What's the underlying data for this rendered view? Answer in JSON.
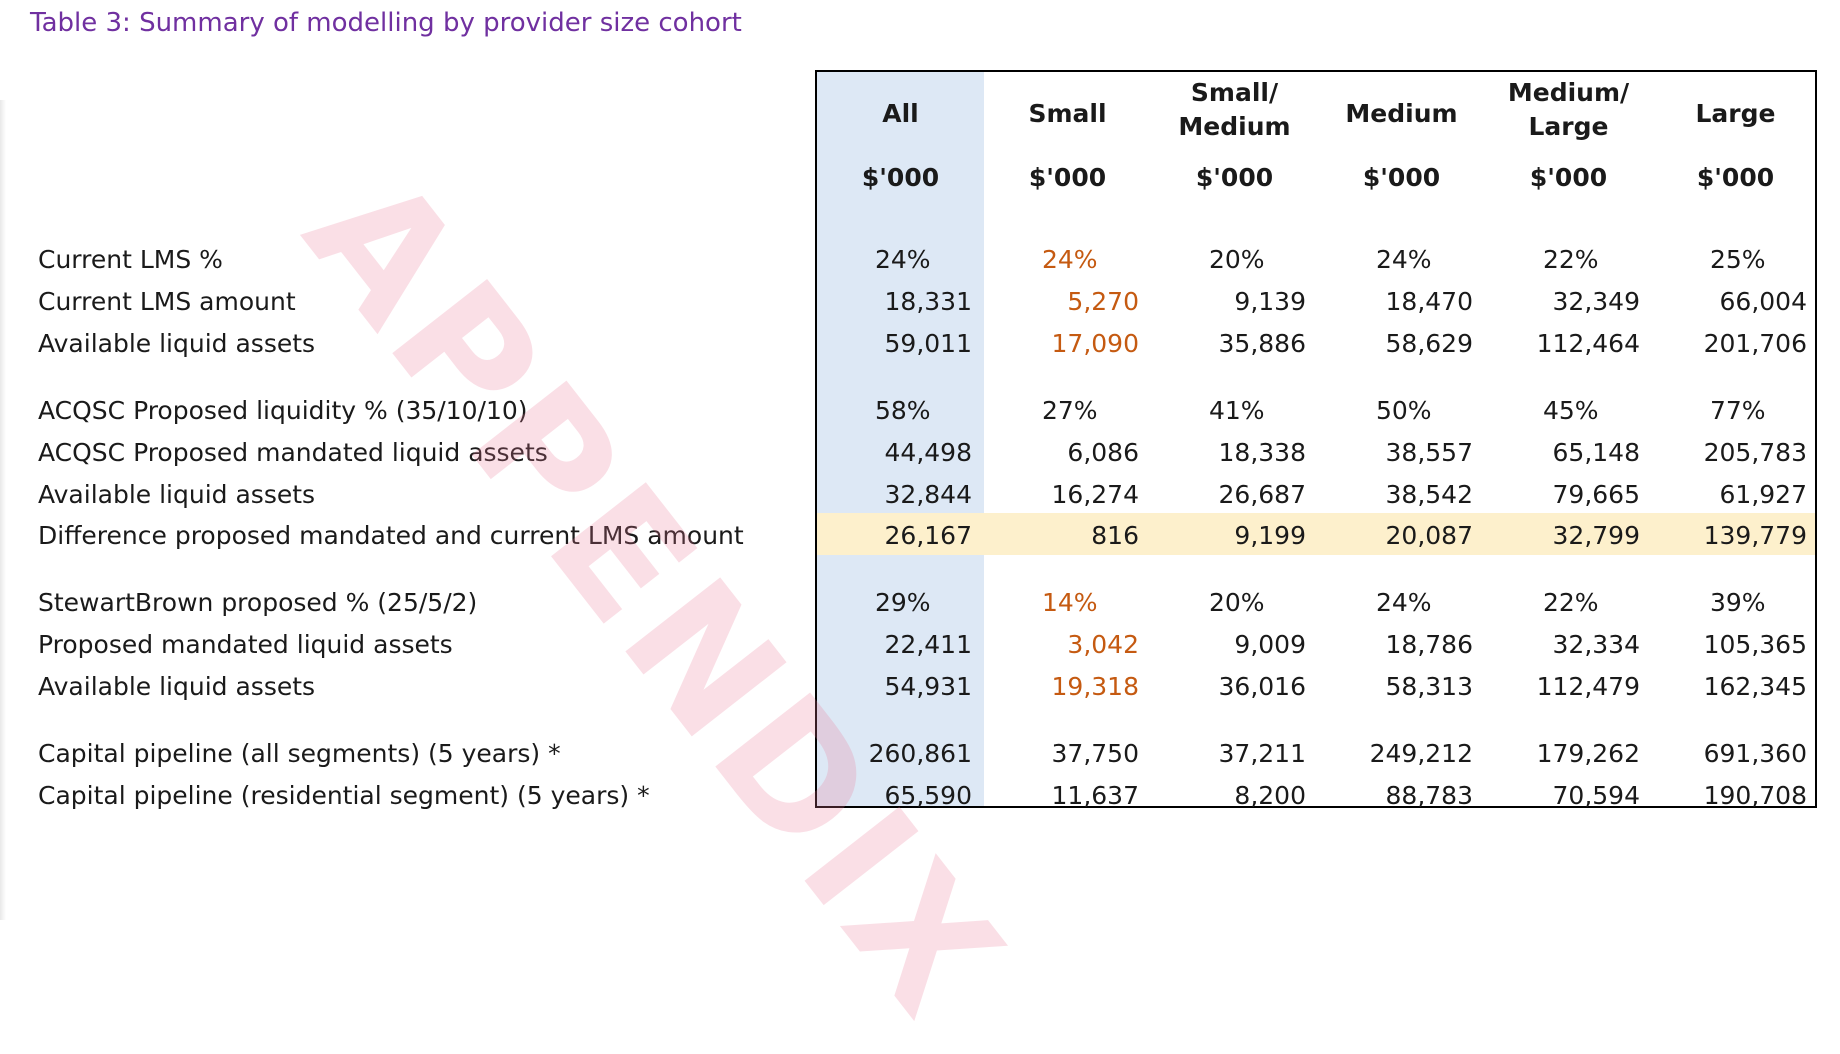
{
  "caption": "Table 3: Summary of modelling by provider size cohort",
  "columns": [
    {
      "head": "All",
      "unit": "$'000"
    },
    {
      "head": "Small",
      "unit": "$'000"
    },
    {
      "head": "Small/ Medium",
      "unit": "$'000"
    },
    {
      "head": "Medium",
      "unit": "$'000"
    },
    {
      "head": "Medium/ Large",
      "unit": "$'000"
    },
    {
      "head": "Large",
      "unit": "$'000"
    }
  ],
  "rows": [
    {
      "label": "Current LMS %",
      "values": [
        "24%",
        "24%",
        "20%",
        "24%",
        "22%",
        "25%"
      ],
      "kind": "pct"
    },
    {
      "label": "Current LMS amount",
      "values": [
        "18,331",
        "5,270",
        "9,139",
        "18,470",
        "32,349",
        "66,004"
      ],
      "kind": "num"
    },
    {
      "label": "Available liquid assets",
      "values": [
        "59,011",
        "17,090",
        "35,886",
        "58,629",
        "112,464",
        "201,706"
      ],
      "kind": "num"
    },
    {
      "label": "ACQSC Proposed liquidity % (35/10/10)",
      "values": [
        "58%",
        "27%",
        "41%",
        "50%",
        "45%",
        "77%"
      ],
      "kind": "pct"
    },
    {
      "label": "ACQSC Proposed mandated liquid assets",
      "values": [
        "44,498",
        "6,086",
        "18,338",
        "38,557",
        "65,148",
        "205,783"
      ],
      "kind": "num"
    },
    {
      "label": "Available liquid assets",
      "values": [
        "32,844",
        "16,274",
        "26,687",
        "38,542",
        "79,665",
        "61,927"
      ],
      "kind": "num"
    },
    {
      "label": "Difference proposed mandated and current LMS amount",
      "values": [
        "26,167",
        "816",
        "9,199",
        "20,087",
        "32,799",
        "139,779"
      ],
      "kind": "num"
    },
    {
      "label": "StewartBrown proposed % (25/5/2)",
      "values": [
        "29%",
        "14%",
        "20%",
        "24%",
        "22%",
        "39%"
      ],
      "kind": "pct"
    },
    {
      "label": "Proposed mandated liquid assets",
      "values": [
        "22,411",
        "3,042",
        "9,009",
        "18,786",
        "32,334",
        "105,365"
      ],
      "kind": "num"
    },
    {
      "label": "Available liquid assets",
      "values": [
        "54,931",
        "19,318",
        "36,016",
        "58,313",
        "112,479",
        "162,345"
      ],
      "kind": "num"
    },
    {
      "label": "Capital pipeline (all segments) (5 years) *",
      "values": [
        "260,861",
        "37,750",
        "37,211",
        "249,212",
        "179,262",
        "691,360"
      ],
      "kind": "num"
    },
    {
      "label": "Capital pipeline (residential segment) (5 years) *",
      "values": [
        "65,590",
        "11,637",
        "8,200",
        "88,783",
        "70,594",
        "190,708"
      ],
      "kind": "num"
    }
  ],
  "highlight_colors": {
    "orange_text": "#c55a11",
    "all_column": "#dde8f5",
    "difference_band": "#fdf0cc"
  },
  "watermark": "APPENDIX"
}
